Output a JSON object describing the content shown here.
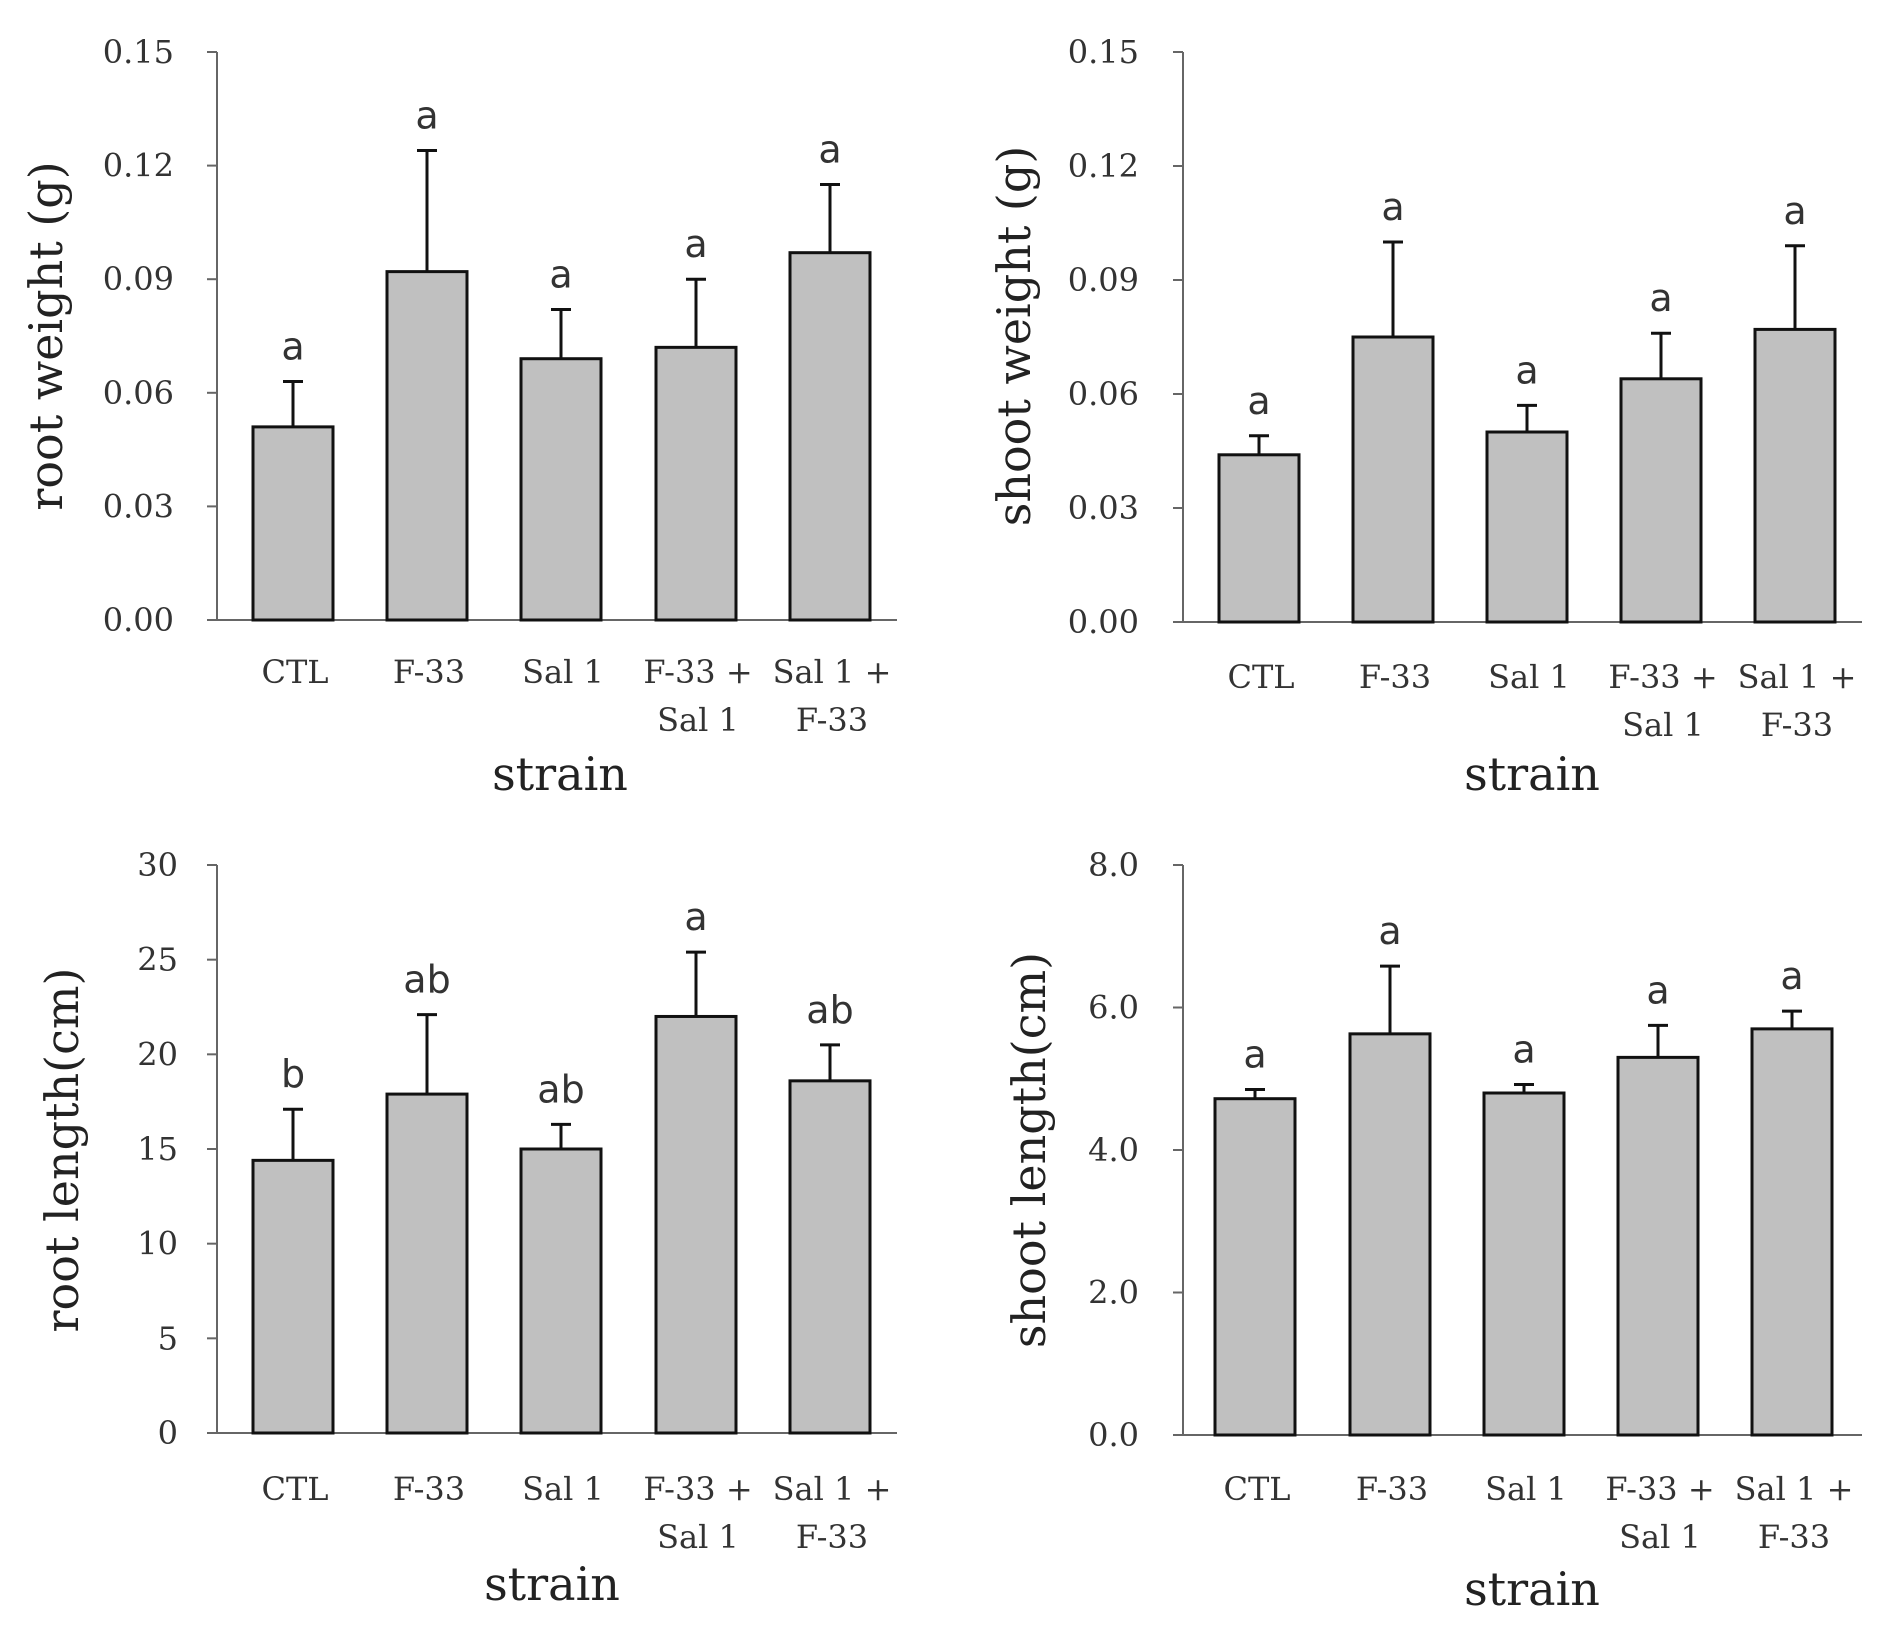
{
  "chart_data": [
    {
      "type": "bar",
      "title": "",
      "ylabel": "root weight (g)",
      "xlabel": "strain",
      "categories": [
        [
          "CTL"
        ],
        [
          "F-33"
        ],
        [
          "Sal 1"
        ],
        [
          "F-33 +",
          "Sal 1"
        ],
        [
          "Sal 1 +",
          "F-33"
        ]
      ],
      "values": [
        0.051,
        0.092,
        0.069,
        0.072,
        0.097
      ],
      "errors": [
        0.012,
        0.032,
        0.013,
        0.018,
        0.018
      ],
      "significance": [
        "a",
        "a",
        "a",
        "a",
        "a"
      ],
      "ylim": [
        0,
        0.15
      ],
      "yticks": [
        "0.00",
        "0.03",
        "0.06",
        "0.09",
        "0.12",
        "0.15"
      ],
      "bar_color": "#c0c0c0"
    },
    {
      "type": "bar",
      "title": "",
      "ylabel": "shoot weight (g)",
      "xlabel": "strain",
      "categories": [
        [
          "CTL"
        ],
        [
          "F-33"
        ],
        [
          "Sal 1"
        ],
        [
          "F-33 +",
          "Sal 1"
        ],
        [
          "Sal 1 +",
          "F-33"
        ]
      ],
      "values": [
        0.044,
        0.075,
        0.05,
        0.064,
        0.077
      ],
      "errors": [
        0.005,
        0.025,
        0.007,
        0.012,
        0.022
      ],
      "significance": [
        "a",
        "a",
        "a",
        "a",
        "a"
      ],
      "ylim": [
        0,
        0.15
      ],
      "yticks": [
        "0.00",
        "0.03",
        "0.06",
        "0.09",
        "0.12",
        "0.15"
      ],
      "bar_color": "#c0c0c0"
    },
    {
      "type": "bar",
      "title": "",
      "ylabel": "root length(cm)",
      "xlabel": "strain",
      "categories": [
        [
          "CTL"
        ],
        [
          "F-33"
        ],
        [
          "Sal 1"
        ],
        [
          "F-33 +",
          "Sal 1"
        ],
        [
          "Sal 1 +",
          "F-33"
        ]
      ],
      "values": [
        14.4,
        17.9,
        15.0,
        22.0,
        18.6
      ],
      "errors": [
        2.7,
        4.2,
        1.3,
        3.4,
        1.9
      ],
      "significance": [
        "b",
        "ab",
        "ab",
        "a",
        "ab"
      ],
      "ylim": [
        0,
        30
      ],
      "yticks": [
        "0",
        "5",
        "10",
        "15",
        "20",
        "25",
        "30"
      ],
      "bar_color": "#c0c0c0"
    },
    {
      "type": "bar",
      "title": "",
      "ylabel": "shoot length(cm)",
      "xlabel": "strain",
      "categories": [
        [
          "CTL"
        ],
        [
          "F-33"
        ],
        [
          "Sal 1"
        ],
        [
          "F-33 +",
          "Sal 1"
        ],
        [
          "Sal 1 +",
          "F-33"
        ]
      ],
      "values": [
        4.72,
        5.63,
        4.8,
        5.3,
        5.7
      ],
      "errors": [
        0.13,
        0.95,
        0.12,
        0.45,
        0.25
      ],
      "significance": [
        "a",
        "a",
        "a",
        "a",
        "a"
      ],
      "ylim": [
        0,
        8
      ],
      "yticks": [
        "0.0",
        "2.0",
        "4.0",
        "6.0",
        "8.0"
      ],
      "bar_color": "#c0c0c0"
    }
  ]
}
